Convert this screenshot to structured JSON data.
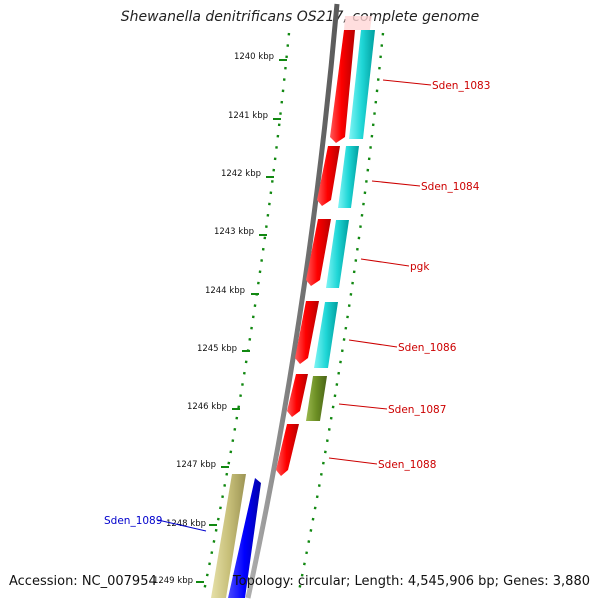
{
  "header": {
    "title": "Shewanella denitrificans OS217, complete genome"
  },
  "footer": {
    "accession": "Accession: NC_007954",
    "topology": "Topology: circular; Length: 4,545,906 bp; Genes: 3,880"
  },
  "ticks": [
    "1240 kbp",
    "1241 kbp",
    "1242 kbp",
    "1243 kbp",
    "1244 kbp",
    "1245 kbp",
    "1246 kbp",
    "1247 kbp",
    "1248 kbp",
    "1249 kbp"
  ],
  "genes": [
    {
      "name": "Sden_1083",
      "color": "#cc0000"
    },
    {
      "name": "Sden_1084",
      "color": "#cc0000"
    },
    {
      "name": "pgk",
      "color": "#cc0000"
    },
    {
      "name": "Sden_1086",
      "color": "#cc0000"
    },
    {
      "name": "Sden_1087",
      "color": "#cc0000"
    },
    {
      "name": "Sden_1088",
      "color": "#cc0000"
    },
    {
      "name": "Sden_1089",
      "color": "#0000cc"
    }
  ],
  "colors": {
    "forward_cds": "#ff0000",
    "reverse_cds": "#0000ff",
    "cog_cyan": "#00cccc",
    "cog_olive": "#6b8e23",
    "cog_khaki": "#bdb76b",
    "backbone": "#808080",
    "dotted_track": "#118811"
  }
}
